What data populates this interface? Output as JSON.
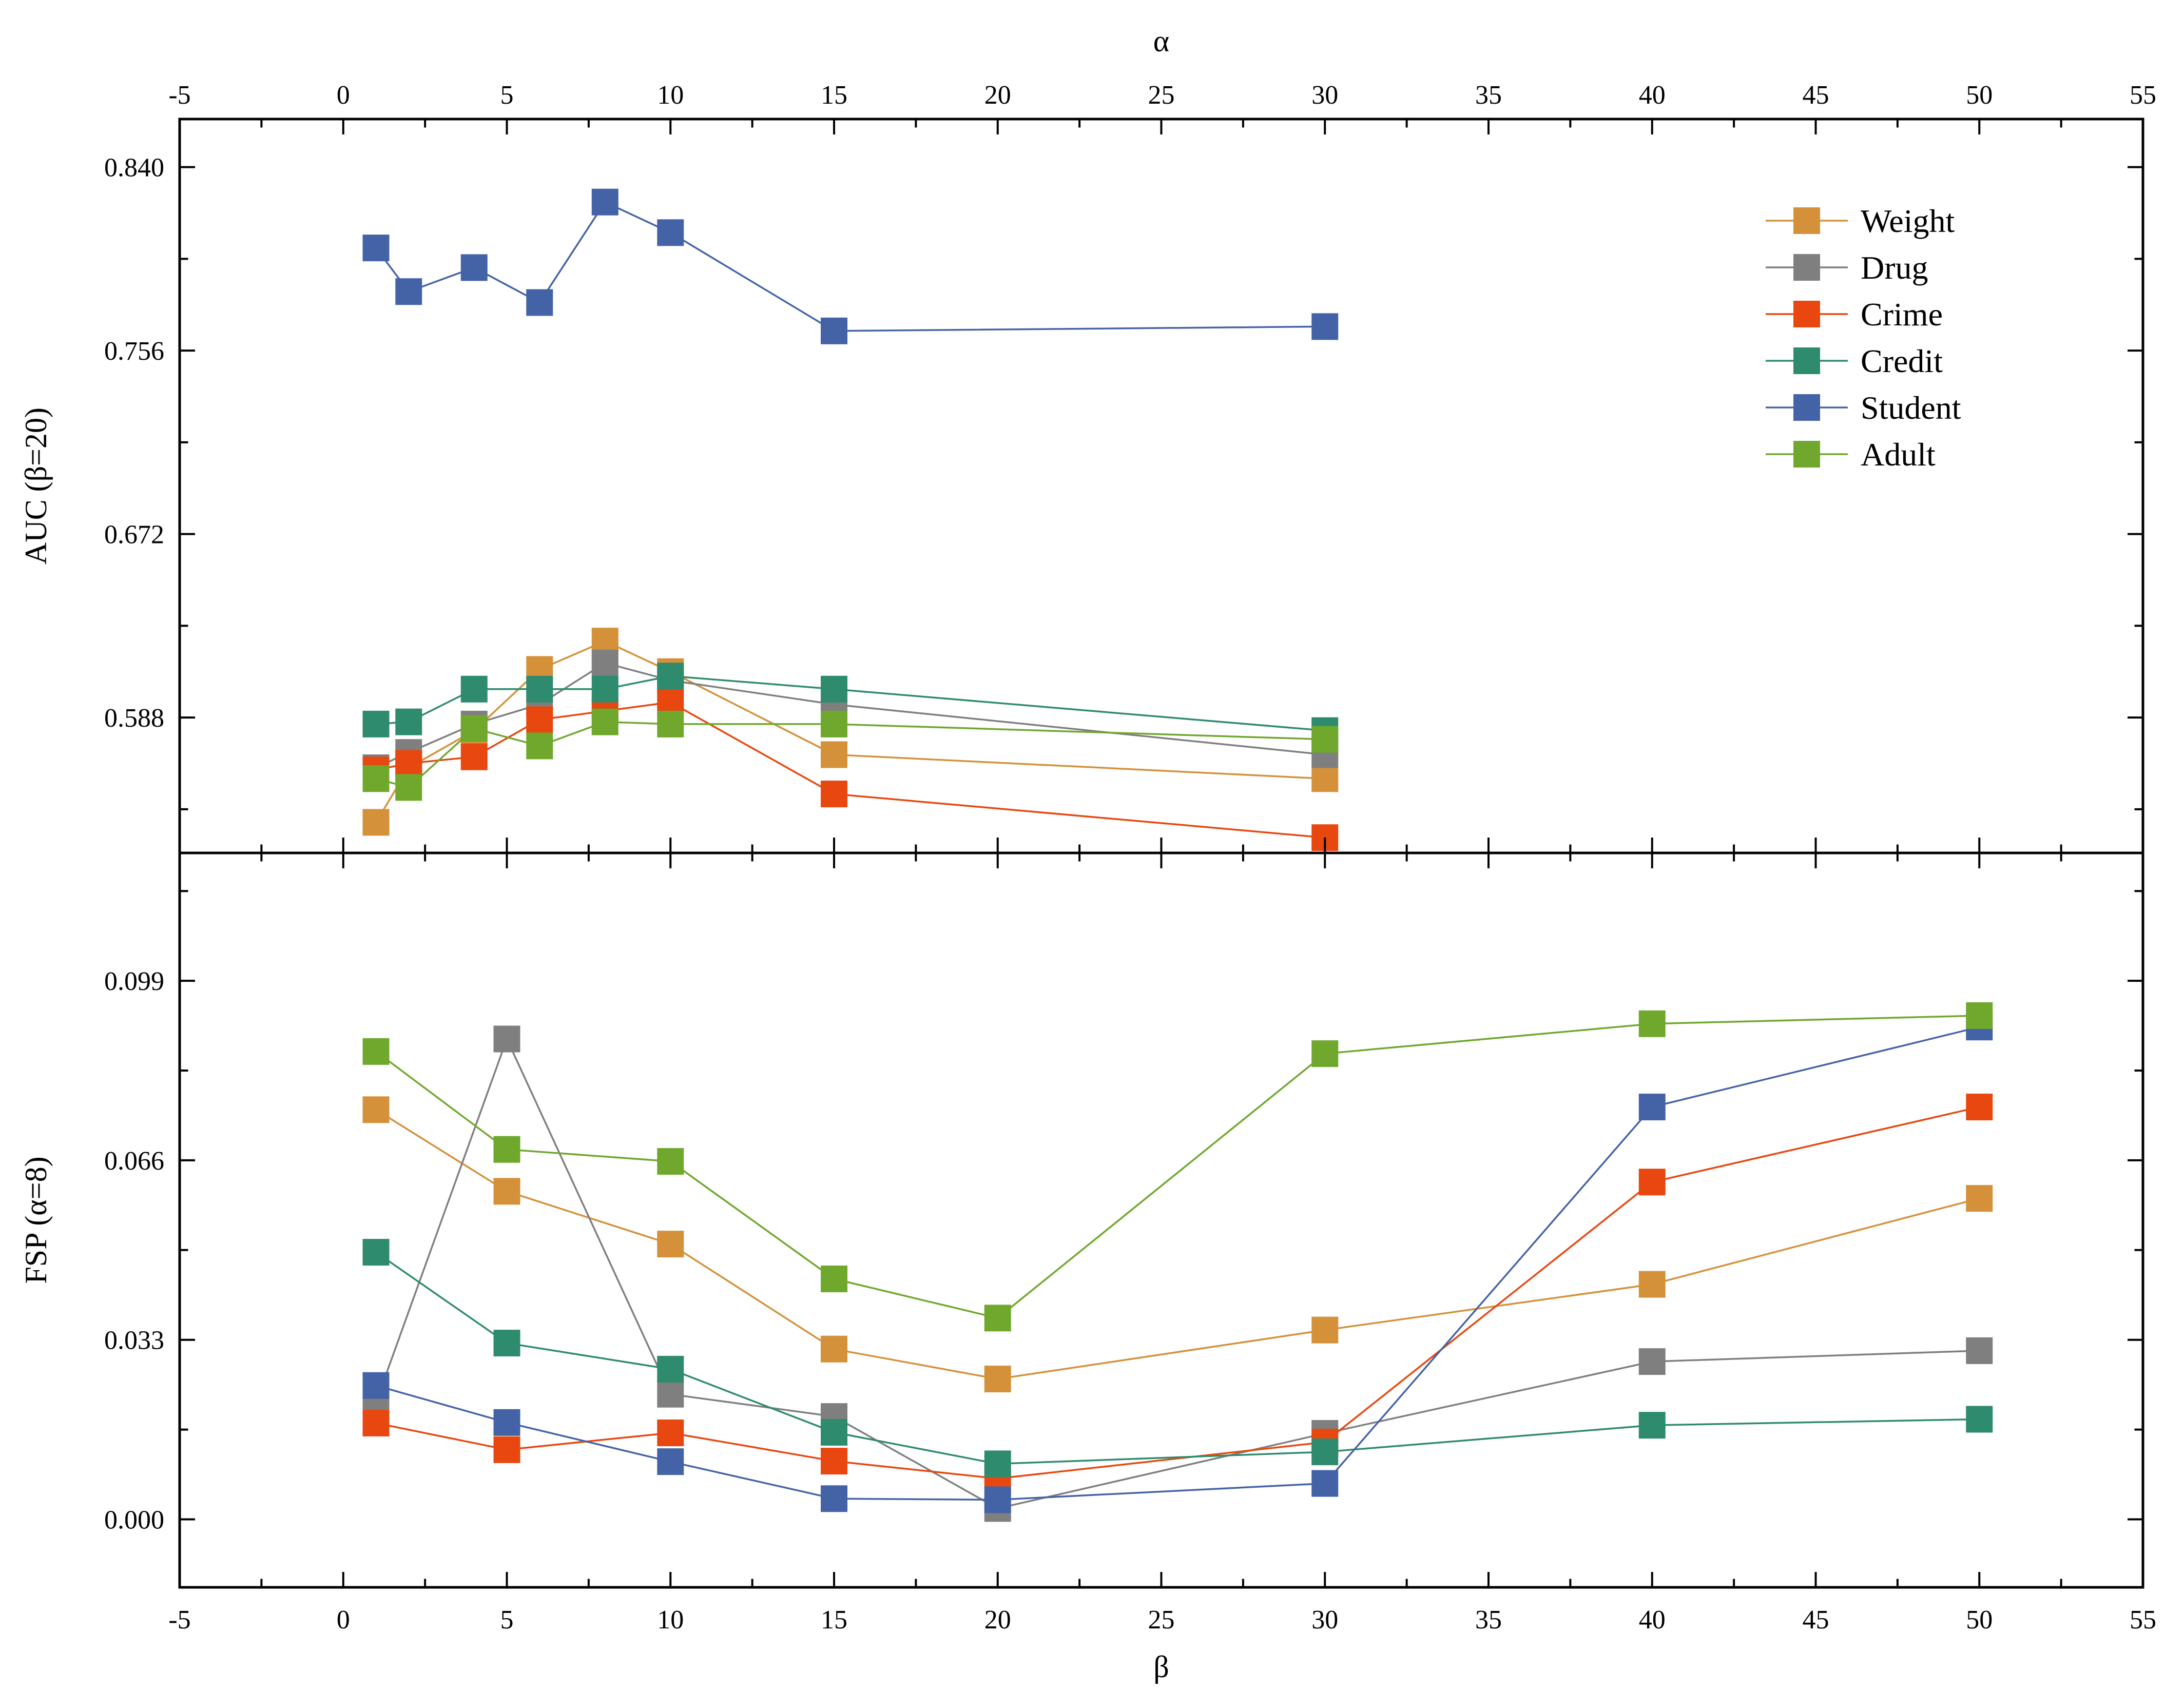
{
  "chart_data": [
    {
      "type": "line",
      "panel": "top",
      "xlabel": "α",
      "ylabel": "AUC (β=20)",
      "xlim": [
        -5,
        55
      ],
      "ylim": [
        0.526,
        0.862
      ],
      "x_ticks": [
        -5,
        0,
        5,
        10,
        15,
        20,
        25,
        30,
        35,
        40,
        45,
        50,
        55
      ],
      "y_ticks": [
        "0.840",
        "0.756",
        "0.672",
        "0.588"
      ],
      "y_tick_values": [
        0.84,
        0.756,
        0.672,
        0.588
      ],
      "x": [
        1,
        2,
        4,
        6,
        8,
        10,
        15,
        30
      ],
      "legend_position": "top-right",
      "series": [
        {
          "name": "Weight",
          "color": "#D4913A",
          "values": [
            0.54,
            0.565,
            0.582,
            0.61,
            0.623,
            0.609,
            0.571,
            0.56
          ]
        },
        {
          "name": "Drug",
          "color": "#7F7F7F",
          "values": [
            0.565,
            0.572,
            0.585,
            0.594,
            0.613,
            0.605,
            0.594,
            0.571
          ]
        },
        {
          "name": "Crime",
          "color": "#E8470F",
          "values": [
            0.564,
            0.567,
            0.57,
            0.587,
            0.591,
            0.595,
            0.553,
            0.533
          ]
        },
        {
          "name": "Credit",
          "color": "#2E8B6E",
          "values": [
            0.585,
            0.586,
            0.601,
            0.601,
            0.601,
            0.607,
            0.601,
            0.582
          ]
        },
        {
          "name": "Student",
          "color": "#4463A6",
          "values": [
            0.803,
            0.783,
            0.794,
            0.778,
            0.824,
            0.81,
            0.765,
            0.767
          ]
        },
        {
          "name": "Adult",
          "color": "#6FA82D",
          "values": [
            0.56,
            0.556,
            0.583,
            0.575,
            0.586,
            0.585,
            0.585,
            0.578
          ]
        }
      ]
    },
    {
      "type": "line",
      "panel": "bottom",
      "xlabel": "β",
      "ylabel": "FSP (α=8)",
      "xlim": [
        -5,
        55
      ],
      "ylim": [
        -0.0125,
        0.1225
      ],
      "x_ticks": [
        -5,
        0,
        5,
        10,
        15,
        20,
        25,
        30,
        35,
        40,
        45,
        50,
        55
      ],
      "y_ticks": [
        "0.000",
        "0.033",
        "0.066",
        "0.099"
      ],
      "y_tick_values": [
        0.0,
        0.033,
        0.066,
        0.099
      ],
      "x": [
        1,
        5,
        10,
        15,
        20,
        30,
        40,
        50
      ],
      "series": [
        {
          "name": "Weight",
          "color": "#D4913A",
          "values": [
            0.0753,
            0.0603,
            0.0506,
            0.0313,
            0.0258,
            0.0348,
            0.0432,
            0.059
          ]
        },
        {
          "name": "Drug",
          "color": "#7F7F7F",
          "values": [
            0.0215,
            0.0883,
            0.023,
            0.0189,
            0.002,
            0.0158,
            0.029,
            0.031
          ]
        },
        {
          "name": "Crime",
          "color": "#E8470F",
          "values": [
            0.0177,
            0.0128,
            0.0159,
            0.0107,
            0.0075,
            0.0142,
            0.062,
            0.0758
          ]
        },
        {
          "name": "Credit",
          "color": "#2E8B6E",
          "values": [
            0.0491,
            0.0324,
            0.0276,
            0.016,
            0.0102,
            0.0124,
            0.0173,
            0.0184
          ]
        },
        {
          "name": "Student",
          "color": "#4463A6",
          "values": [
            0.0246,
            0.0178,
            0.0106,
            0.0038,
            0.0036,
            0.0066,
            0.0758,
            0.0905
          ]
        },
        {
          "name": "Adult",
          "color": "#6FA82D",
          "values": [
            0.086,
            0.068,
            0.0658,
            0.0442,
            0.037,
            0.0856,
            0.0911,
            0.0926
          ]
        }
      ]
    }
  ]
}
